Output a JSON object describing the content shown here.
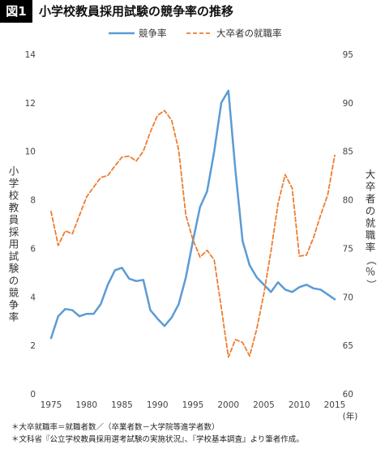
{
  "header": {
    "badge": "図1",
    "title": "小学校教員採用試験の競争率の推移"
  },
  "notes": [
    "＊大卒就職率＝就職者数／（卒業者数－大学院等進学者数）",
    "＊文科省『公立学校教員採用選考試験の実施状況』、『学校基本調査』より筆者作成。"
  ],
  "chart_data": {
    "type": "line",
    "title": "小学校教員採用試験の競争率の推移",
    "x_unit": "(年)",
    "ylabel_left": "小学校教員採用試験の競争率",
    "ylabel_right": "大卒者の就職率（％）",
    "ylim_left": [
      0,
      14
    ],
    "ylim_right": [
      60,
      95
    ],
    "xlim": [
      1975,
      2015
    ],
    "x_ticks": [
      1975,
      1980,
      1985,
      1990,
      1995,
      2000,
      2005,
      2010,
      2015
    ],
    "y_left_ticks": [
      0,
      2,
      4,
      6,
      8,
      10,
      12,
      14
    ],
    "y_right_ticks": [
      60,
      65,
      70,
      75,
      80,
      85,
      90,
      95
    ],
    "grid": false,
    "legend": "top-center",
    "series": [
      {
        "name": "競争率",
        "axis": "left",
        "color": "#5b9bd5",
        "style": "solid",
        "x": [
          1975,
          1976,
          1977,
          1978,
          1979,
          1980,
          1981,
          1982,
          1983,
          1984,
          1985,
          1986,
          1987,
          1988,
          1989,
          1990,
          1991,
          1992,
          1993,
          1994,
          1995,
          1996,
          1997,
          1998,
          1999,
          2000,
          2001,
          2002,
          2003,
          2004,
          2005,
          2006,
          2007,
          2008,
          2009,
          2010,
          2011,
          2012,
          2013,
          2014,
          2015
        ],
        "values": [
          2.3,
          3.2,
          3.5,
          3.45,
          3.2,
          3.3,
          3.3,
          3.7,
          4.5,
          5.1,
          5.2,
          4.75,
          4.65,
          4.7,
          3.45,
          3.1,
          2.8,
          3.15,
          3.7,
          4.8,
          6.3,
          7.7,
          8.35,
          10.0,
          12.0,
          12.5,
          9.2,
          6.3,
          5.3,
          4.8,
          4.5,
          4.2,
          4.6,
          4.3,
          4.2,
          4.4,
          4.5,
          4.35,
          4.3,
          4.1,
          3.9
        ]
      },
      {
        "name": "大卒者の就職率",
        "axis": "right",
        "color": "#ed7d31",
        "style": "dashed",
        "x": [
          1975,
          1976,
          1977,
          1978,
          1979,
          1980,
          1981,
          1982,
          1983,
          1984,
          1985,
          1986,
          1987,
          1988,
          1989,
          1990,
          1991,
          1992,
          1993,
          1994,
          1995,
          1996,
          1997,
          1998,
          1999,
          2000,
          2001,
          2002,
          2003,
          2004,
          2005,
          2006,
          2007,
          2008,
          2009,
          2010,
          2011,
          2012,
          2013,
          2014,
          2015
        ],
        "values": [
          78.8,
          75.3,
          76.8,
          76.5,
          78.4,
          80.3,
          81.3,
          82.3,
          82.5,
          83.5,
          84.4,
          84.5,
          84.0,
          85.0,
          87.0,
          88.7,
          89.2,
          88.2,
          85.1,
          78.4,
          75.9,
          74.1,
          74.8,
          73.8,
          68.9,
          63.8,
          65.6,
          65.3,
          63.9,
          66.7,
          70.3,
          74.7,
          79.6,
          82.6,
          81.2,
          74.2,
          74.3,
          76.1,
          78.4,
          80.5,
          84.6
        ]
      }
    ]
  }
}
